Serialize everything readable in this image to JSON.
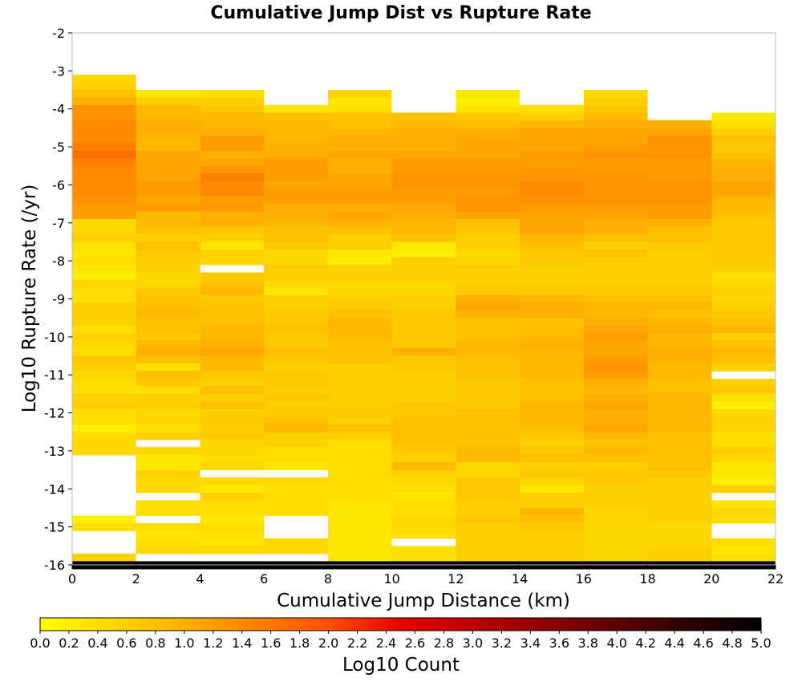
{
  "chart_data": {
    "type": "heatmap",
    "title": "Cumulative Jump Dist vs Rupture Rate",
    "xlabel": "Cumulative Jump Distance (km)",
    "ylabel": "Log10 Rupture Rate (/yr)",
    "xlim": [
      0,
      22
    ],
    "ylim": [
      -16,
      -2
    ],
    "xticks": [
      "0",
      "2",
      "4",
      "6",
      "8",
      "10",
      "12",
      "14",
      "16",
      "18",
      "20",
      "22"
    ],
    "yticks": [
      "-2",
      "-3",
      "-4",
      "-5",
      "-6",
      "-7",
      "-8",
      "-9",
      "-10",
      "-11",
      "-12",
      "-13",
      "-14",
      "-15",
      "-16"
    ],
    "x_bin_width_km": 2,
    "y_bin_height_log10": 0.2,
    "y_bin_starts": [
      -3.1,
      -3.3,
      -3.5,
      -3.7,
      -3.9,
      -4.1,
      -4.3,
      -4.5,
      -4.7,
      -4.9,
      -5.1,
      -5.3,
      -5.5,
      -5.7,
      -5.9,
      -6.1,
      -6.3,
      -6.5,
      -6.7,
      -6.9,
      -7.1,
      -7.3,
      -7.5,
      -7.7,
      -7.9,
      -8.1,
      -8.3,
      -8.5,
      -8.7,
      -8.9,
      -9.1,
      -9.3,
      -9.5,
      -9.7,
      -9.9,
      -10.1,
      -10.3,
      -10.5,
      -10.7,
      -10.9,
      -11.1,
      -11.3,
      -11.5,
      -11.7,
      -11.9,
      -12.1,
      -12.3,
      -12.5,
      -12.7,
      -12.9,
      -13.1,
      -13.3,
      -13.5,
      -13.7,
      -13.9,
      -14.1,
      -14.3,
      -14.5,
      -14.7,
      -14.9,
      -15.1,
      -15.3,
      -15.5,
      -15.7,
      -15.9
    ],
    "columns": [
      {
        "x0": 0,
        "log10_counts": [
          0.5,
          0.6,
          0.8,
          1.0,
          1.3,
          1.3,
          1.4,
          1.4,
          1.4,
          1.5,
          1.7,
          1.5,
          1.4,
          1.4,
          1.4,
          1.4,
          1.3,
          1.2,
          1.2,
          0.5,
          0.5,
          0.6,
          0.4,
          0.3,
          0.4,
          0.3,
          0.2,
          0.5,
          0.4,
          0.4,
          0.6,
          0.6,
          0.6,
          0.4,
          0.6,
          0.5,
          0.4,
          0.7,
          0.6,
          0.5,
          0.4,
          0.4,
          0.6,
          0.6,
          0.4,
          0.4,
          0.2,
          0.4,
          0.5,
          0.5,
          null,
          null,
          null,
          null,
          null,
          null,
          null,
          null,
          0.2,
          0.4,
          null,
          null,
          null,
          0.6,
          5.0
        ]
      },
      {
        "x0": 2,
        "log10_counts": [
          null,
          null,
          0.3,
          0.6,
          0.9,
          0.9,
          1.0,
          1.0,
          0.9,
          0.9,
          1.1,
          1.1,
          1.1,
          1.1,
          1.2,
          1.2,
          1.1,
          1.2,
          0.9,
          0.9,
          0.8,
          0.6,
          0.8,
          0.7,
          0.6,
          0.6,
          0.5,
          0.5,
          0.7,
          0.8,
          0.8,
          0.9,
          0.8,
          0.8,
          0.7,
          0.9,
          1.0,
          0.8,
          0.4,
          0.8,
          0.7,
          0.4,
          0.6,
          0.6,
          0.5,
          0.5,
          0.4,
          0.6,
          null,
          0.5,
          0.3,
          0.3,
          0.6,
          0.5,
          0.5,
          null,
          0.4,
          0.4,
          null,
          0.4,
          0.3,
          0.4,
          0.5,
          null,
          5.0
        ]
      },
      {
        "x0": 4,
        "log10_counts": [
          null,
          null,
          0.4,
          0.6,
          0.7,
          0.9,
          0.9,
          1.0,
          1.2,
          1.2,
          1.0,
          1.1,
          1.3,
          1.5,
          1.4,
          1.4,
          1.2,
          1.2,
          1.0,
          1.0,
          0.7,
          0.6,
          0.3,
          0.6,
          0.5,
          null,
          0.7,
          0.8,
          0.9,
          0.7,
          0.8,
          0.8,
          0.8,
          0.9,
          0.9,
          1.0,
          1.1,
          0.9,
          0.9,
          0.7,
          0.6,
          0.8,
          0.6,
          0.8,
          0.6,
          0.7,
          0.6,
          0.7,
          0.5,
          0.5,
          0.4,
          0.5,
          null,
          0.5,
          0.3,
          0.6,
          0.4,
          0.4,
          0.3,
          0.4,
          0.4,
          0.3,
          0.5,
          null,
          5.0
        ]
      },
      {
        "x0": 6,
        "log10_counts": [
          null,
          null,
          null,
          null,
          0.3,
          0.8,
          0.9,
          0.9,
          0.9,
          1.0,
          1.0,
          1.2,
          1.2,
          1.2,
          1.1,
          1.2,
          1.2,
          1.0,
          1.0,
          0.9,
          0.8,
          0.8,
          0.7,
          0.5,
          0.5,
          0.6,
          0.6,
          0.5,
          0.3,
          0.6,
          0.6,
          0.7,
          0.7,
          0.8,
          0.7,
          0.7,
          0.8,
          0.7,
          0.6,
          0.7,
          0.7,
          0.6,
          0.7,
          0.6,
          0.7,
          0.8,
          0.9,
          0.6,
          0.6,
          0.4,
          0.4,
          0.3,
          null,
          0.5,
          0.4,
          0.4,
          0.4,
          0.4,
          null,
          null,
          null,
          0.5,
          0.5,
          null,
          5.0
        ]
      },
      {
        "x0": 8,
        "log10_counts": [
          null,
          null,
          0.6,
          0.3,
          0.4,
          0.8,
          0.8,
          0.9,
          1.0,
          1.0,
          1.1,
          1.0,
          1.0,
          1.1,
          1.1,
          1.2,
          1.2,
          1.0,
          1.1,
          1.0,
          0.8,
          0.6,
          0.6,
          0.3,
          0.2,
          0.6,
          0.6,
          0.5,
          0.5,
          0.6,
          0.7,
          0.8,
          0.9,
          0.9,
          0.9,
          0.8,
          0.8,
          0.8,
          0.6,
          0.6,
          0.6,
          0.6,
          0.6,
          0.6,
          0.7,
          0.6,
          0.8,
          0.6,
          0.4,
          0.4,
          0.4,
          0.4,
          0.4,
          0.4,
          0.4,
          0.4,
          0.3,
          0.3,
          0.3,
          0.3,
          0.3,
          0.3,
          0.3,
          0.3,
          5.0
        ]
      },
      {
        "x0": 10,
        "log10_counts": [
          null,
          null,
          null,
          null,
          null,
          0.8,
          0.9,
          1.0,
          1.0,
          1.0,
          1.1,
          1.2,
          1.2,
          1.3,
          1.3,
          1.2,
          1.2,
          1.1,
          1.0,
          0.9,
          0.9,
          0.8,
          0.3,
          0.2,
          0.6,
          0.6,
          0.6,
          0.5,
          0.5,
          0.6,
          0.6,
          0.7,
          0.7,
          0.7,
          0.7,
          0.7,
          1.0,
          0.7,
          0.7,
          0.6,
          0.6,
          0.6,
          0.6,
          0.7,
          0.7,
          0.8,
          0.8,
          0.8,
          0.8,
          0.7,
          0.6,
          0.9,
          0.6,
          0.5,
          0.4,
          0.3,
          0.4,
          0.4,
          0.5,
          0.5,
          0.4,
          null,
          0.4,
          0.4,
          5.0
        ]
      },
      {
        "x0": 12,
        "log10_counts": [
          null,
          null,
          0.3,
          0.2,
          0.3,
          0.7,
          0.8,
          1.0,
          1.1,
          1.1,
          1.1,
          1.2,
          1.2,
          1.3,
          1.3,
          1.2,
          1.3,
          1.3,
          1.1,
          0.8,
          0.7,
          0.6,
          0.6,
          0.5,
          0.5,
          0.6,
          0.6,
          0.6,
          0.7,
          1.0,
          1.1,
          1.0,
          0.8,
          0.8,
          0.8,
          0.9,
          0.9,
          0.8,
          0.8,
          0.8,
          0.7,
          0.7,
          0.7,
          0.7,
          0.8,
          0.8,
          0.8,
          0.8,
          0.8,
          0.9,
          0.9,
          0.5,
          0.5,
          0.7,
          0.7,
          0.7,
          0.6,
          0.6,
          0.7,
          0.6,
          0.6,
          0.6,
          0.6,
          0.6,
          5.0
        ]
      },
      {
        "x0": 14,
        "log10_counts": [
          null,
          null,
          null,
          null,
          0.4,
          0.6,
          0.9,
          1.1,
          1.1,
          1.1,
          1.2,
          1.2,
          1.3,
          1.3,
          1.4,
          1.4,
          1.3,
          1.2,
          1.1,
          1.1,
          1.1,
          0.9,
          0.8,
          0.7,
          0.7,
          0.6,
          0.6,
          0.6,
          0.7,
          0.9,
          1.0,
          1.0,
          0.8,
          0.8,
          0.9,
          1.0,
          0.9,
          0.9,
          0.9,
          0.9,
          0.8,
          0.8,
          0.8,
          0.9,
          0.9,
          0.9,
          0.8,
          0.7,
          0.6,
          0.7,
          0.8,
          0.6,
          0.7,
          0.5,
          0.3,
          0.6,
          0.6,
          0.9,
          0.8,
          0.7,
          0.6,
          0.6,
          0.6,
          0.6,
          5.0
        ]
      },
      {
        "x0": 16,
        "log10_counts": [
          null,
          null,
          0.5,
          0.6,
          0.7,
          0.9,
          1.0,
          1.1,
          1.1,
          1.2,
          1.3,
          1.2,
          1.2,
          1.3,
          1.3,
          1.3,
          1.3,
          1.2,
          1.1,
          1.0,
          1.0,
          0.8,
          0.6,
          0.8,
          0.6,
          0.6,
          0.6,
          0.6,
          0.7,
          0.8,
          0.9,
          0.9,
          1.0,
          1.1,
          1.2,
          1.1,
          1.1,
          1.2,
          1.3,
          1.2,
          1.0,
          0.9,
          1.0,
          1.1,
          1.0,
          1.0,
          1.1,
          0.9,
          0.8,
          0.9,
          0.8,
          0.6,
          0.7,
          0.7,
          0.6,
          0.6,
          0.6,
          0.5,
          0.5,
          0.5,
          0.5,
          0.5,
          0.5,
          0.5,
          5.0
        ]
      },
      {
        "x0": 18,
        "log10_counts": [
          null,
          null,
          null,
          null,
          null,
          null,
          1.0,
          1.1,
          1.3,
          1.3,
          1.3,
          1.2,
          1.2,
          1.2,
          1.3,
          1.3,
          1.3,
          1.2,
          1.2,
          1.0,
          0.8,
          0.8,
          0.7,
          0.6,
          0.6,
          0.6,
          0.6,
          0.6,
          0.7,
          0.8,
          0.9,
          0.8,
          0.9,
          1.0,
          0.9,
          0.9,
          1.0,
          1.0,
          0.9,
          0.9,
          0.8,
          0.8,
          0.9,
          0.9,
          0.9,
          0.9,
          0.9,
          0.8,
          0.8,
          0.8,
          0.8,
          0.8,
          0.7,
          0.6,
          0.6,
          0.6,
          0.6,
          0.6,
          0.6,
          0.5,
          0.5,
          0.5,
          0.6,
          0.6,
          5.0
        ]
      },
      {
        "x0": 20,
        "log10_counts": [
          null,
          null,
          null,
          null,
          null,
          0.3,
          0.4,
          0.6,
          0.8,
          0.7,
          0.8,
          0.9,
          1.0,
          1.0,
          1.1,
          1.1,
          0.9,
          0.9,
          0.8,
          0.7,
          0.7,
          0.7,
          0.7,
          0.7,
          0.7,
          0.6,
          0.4,
          0.5,
          0.6,
          0.5,
          0.6,
          0.7,
          0.8,
          0.9,
          0.6,
          0.8,
          0.9,
          0.8,
          0.6,
          null,
          0.6,
          0.7,
          0.4,
          0.2,
          0.5,
          0.6,
          0.5,
          0.4,
          0.4,
          0.6,
          0.5,
          0.3,
          0.3,
          0.2,
          0.6,
          null,
          0.3,
          0.5,
          0.4,
          null,
          null,
          0.4,
          0.3,
          0.4,
          5.0
        ]
      }
    ],
    "colorbar": {
      "label": "Log10 Count",
      "min": 0.0,
      "max": 5.0,
      "ticks": [
        "0.0",
        "0.2",
        "0.4",
        "0.6",
        "0.8",
        "1.0",
        "1.2",
        "1.4",
        "1.6",
        "1.8",
        "2.0",
        "2.2",
        "2.4",
        "2.6",
        "2.8",
        "3.0",
        "3.2",
        "3.4",
        "3.6",
        "3.8",
        "4.0",
        "4.2",
        "4.4",
        "4.6",
        "4.8",
        "5.0"
      ],
      "stops": [
        {
          "v": 0.0,
          "color": "#ffff00"
        },
        {
          "v": 1.0,
          "color": "#ffb000"
        },
        {
          "v": 2.0,
          "color": "#ff5000"
        },
        {
          "v": 2.5,
          "color": "#e80000"
        },
        {
          "v": 3.5,
          "color": "#900000"
        },
        {
          "v": 4.3,
          "color": "#400000"
        },
        {
          "v": 5.0,
          "color": "#000000"
        }
      ]
    },
    "grid": false
  }
}
